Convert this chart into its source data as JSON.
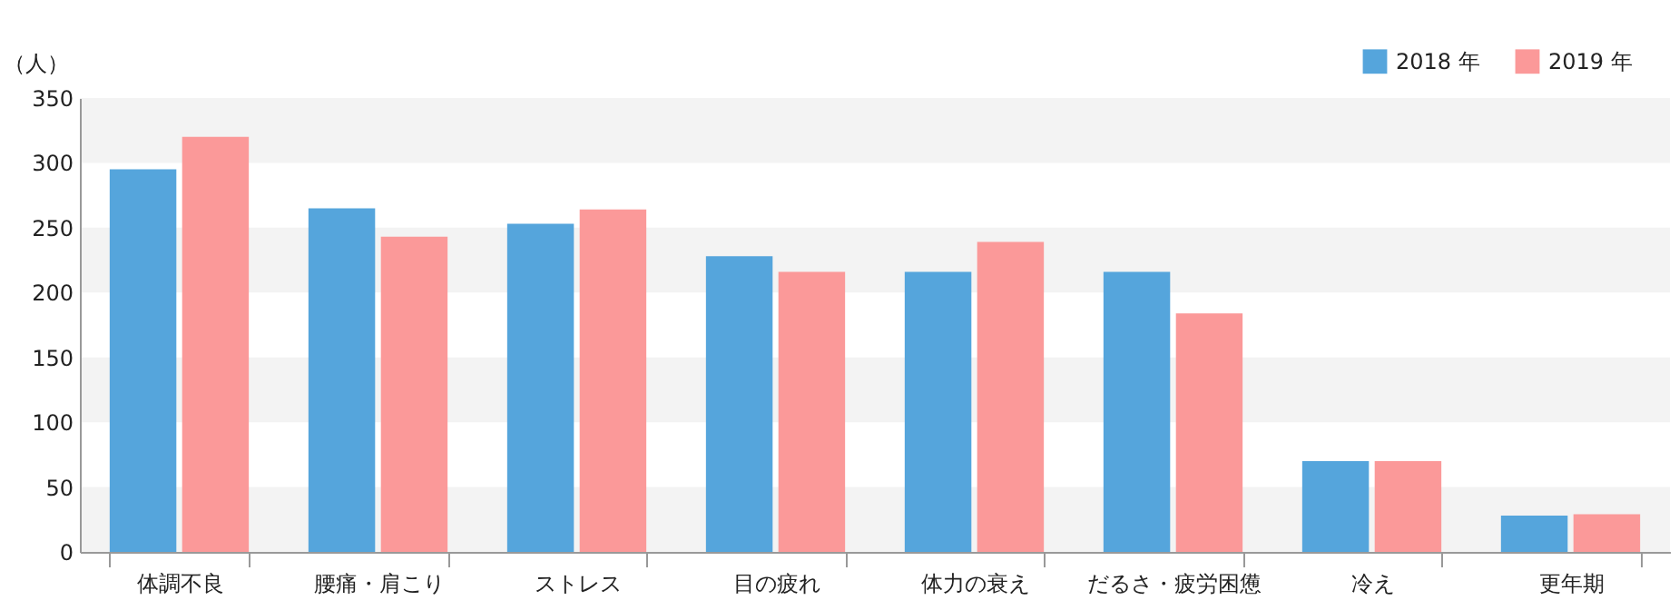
{
  "chart_data": {
    "type": "bar",
    "ylabel": "（人）",
    "categories": [
      "体調不良",
      "腰痛・肩こり",
      "ストレス",
      "目の疲れ",
      "体力の衰え",
      "だるさ・疲労困憊",
      "冷え",
      "更年期"
    ],
    "series": [
      {
        "name": "2018 年",
        "color": "#55a5dc",
        "values": [
          295,
          265,
          253,
          228,
          216,
          216,
          70,
          28
        ]
      },
      {
        "name": "2019 年",
        "color": "#fb9999",
        "values": [
          320,
          243,
          264,
          216,
          239,
          184,
          70,
          29
        ]
      }
    ],
    "ylim": [
      0,
      350
    ],
    "yticks": [
      0,
      50,
      100,
      150,
      200,
      250,
      300,
      350
    ],
    "bands": [
      {
        "axis": "y",
        "from": 0,
        "to": 50,
        "color": "#f3f3f3"
      },
      {
        "axis": "y",
        "from": 100,
        "to": 150,
        "color": "#f3f3f3"
      },
      {
        "axis": "y",
        "from": 200,
        "to": 250,
        "color": "#f3f3f3"
      },
      {
        "axis": "y",
        "from": 300,
        "to": 350,
        "color": "#f3f3f3"
      }
    ],
    "legend": "top right",
    "grid": false
  }
}
